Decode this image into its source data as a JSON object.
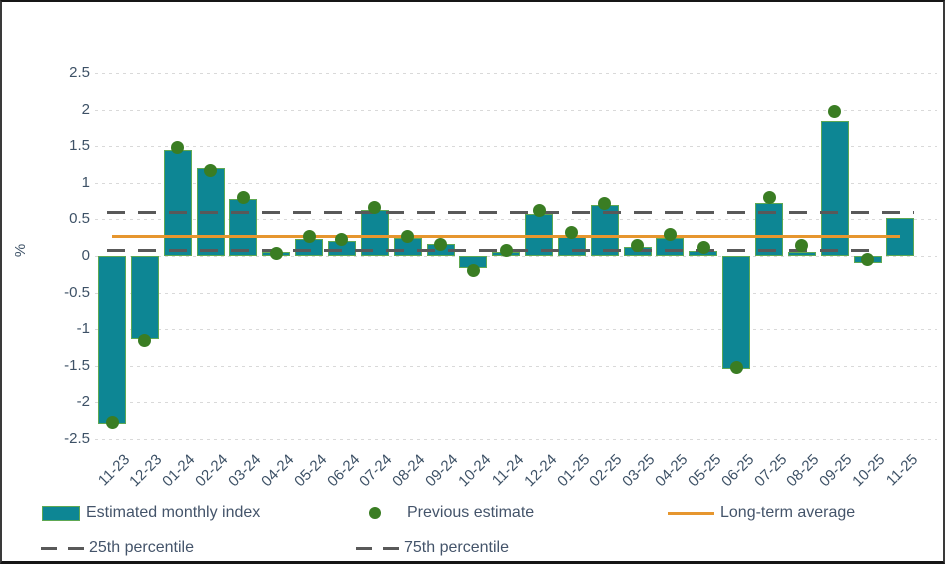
{
  "figure": {
    "ylabel": "%",
    "colors": {
      "bar": "#0d8694",
      "bar_border": "#5ea853",
      "dot": "#3a7d23",
      "average_line": "#e6962e",
      "percentile_line": "#595959",
      "gridline": "#d9d9d9",
      "text": "#3d5166"
    }
  },
  "chart_data": {
    "type": "bar",
    "title": "",
    "xlabel": "",
    "ylabel": "%",
    "ylim": [
      -2.5,
      2.5
    ],
    "ytick_step": 0.5,
    "grid": true,
    "legend_position": "bottom",
    "categories": [
      "11-23",
      "12-23",
      "01-24",
      "02-24",
      "03-24",
      "04-24",
      "05-24",
      "06-24",
      "07-24",
      "08-24",
      "09-24",
      "10-24",
      "11-24",
      "12-24",
      "01-25",
      "02-25",
      "03-25",
      "04-25",
      "05-25",
      "06-25",
      "07-25",
      "08-25",
      "09-25",
      "10-25",
      "11-25"
    ],
    "series": [
      {
        "name": "Estimated monthly index",
        "type": "bar",
        "color": "#0d8694",
        "values": [
          -2.3,
          -1.13,
          1.45,
          1.2,
          0.78,
          0.05,
          0.23,
          0.2,
          0.63,
          0.24,
          0.17,
          -0.17,
          0.05,
          0.58,
          0.28,
          0.7,
          0.12,
          0.25,
          0.07,
          -1.55,
          0.72,
          0.05,
          1.85,
          -0.1,
          0.52
        ]
      },
      {
        "name": "Previous estimate",
        "type": "scatter",
        "color": "#3a7d23",
        "values": [
          -2.27,
          -1.15,
          1.48,
          1.17,
          0.8,
          0.04,
          0.26,
          0.23,
          0.66,
          0.27,
          0.16,
          -0.2,
          0.07,
          0.62,
          0.32,
          0.72,
          0.15,
          0.3,
          0.12,
          -1.53,
          0.8,
          0.14,
          1.97,
          -0.05,
          null
        ]
      }
    ],
    "reference_lines": [
      {
        "name": "25th percentile",
        "value": 0.08,
        "style": "dashed",
        "color": "#595959"
      },
      {
        "name": "75th percentile",
        "value": 0.6,
        "style": "dashed",
        "color": "#595959"
      },
      {
        "name": "Long-term average",
        "value": 0.28,
        "style": "solid",
        "color": "#e6962e"
      }
    ]
  }
}
